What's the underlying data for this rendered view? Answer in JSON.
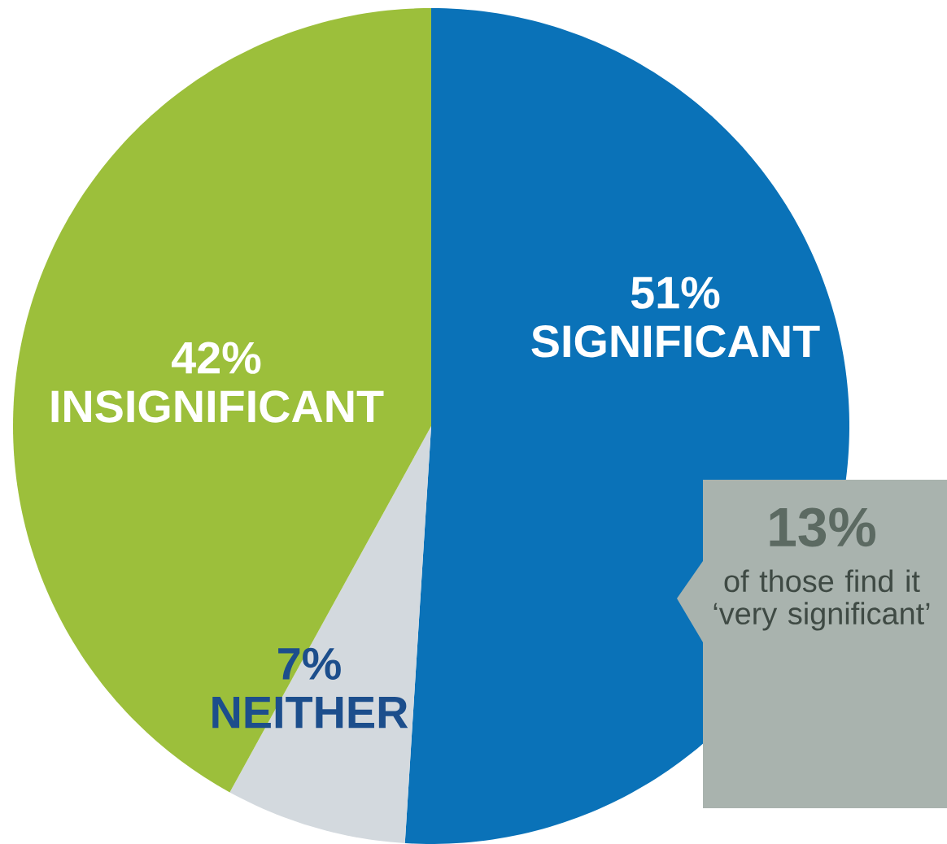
{
  "chart_data": {
    "type": "pie",
    "categories": [
      "SIGNIFICANT",
      "NEITHER",
      "INSIGNIFICANT"
    ],
    "values": [
      51,
      7,
      42
    ],
    "value_labels": [
      "51%",
      "7%",
      "42%"
    ],
    "colors": [
      "#0a72b8",
      "#d3d9de",
      "#9cbf3b"
    ],
    "annotations": [
      "13%",
      "of those find it ‘very significant’"
    ]
  }
}
